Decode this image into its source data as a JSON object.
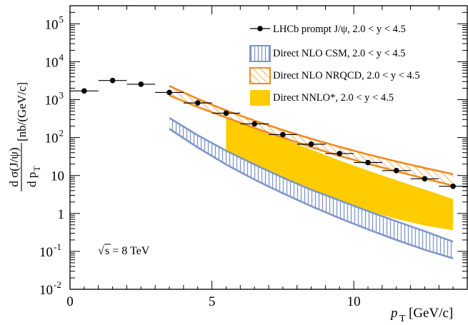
{
  "chart_data": {
    "type": "scatter",
    "title": "",
    "xlabel": {
      "main": "p",
      "sub": "T",
      "unit": "[GeV/c]"
    },
    "ylabel": {
      "numerator": "d σ(J/ψ)",
      "denominator_main": "d p",
      "denominator_sub": "T",
      "unit": "[nb/(GeV/c]"
    },
    "xlim": [
      0,
      14
    ],
    "ylim": [
      0.01,
      300000
    ],
    "yscale": "log",
    "x_ticks": [
      {
        "value": 0,
        "label": "0"
      },
      {
        "value": 5,
        "label": "5"
      },
      {
        "value": 10,
        "label": "10"
      }
    ],
    "y_ticks": [
      {
        "value": 0.01,
        "base": "10",
        "exp": "-2"
      },
      {
        "value": 0.1,
        "base": "10",
        "exp": "-1"
      },
      {
        "value": 1,
        "base": "1",
        "exp": ""
      },
      {
        "value": 10,
        "base": "10",
        "exp": ""
      },
      {
        "value": 100,
        "base": "10",
        "exp": "2"
      },
      {
        "value": 1000,
        "base": "10",
        "exp": "3"
      },
      {
        "value": 10000,
        "base": "10",
        "exp": "4"
      },
      {
        "value": 100000,
        "base": "10",
        "exp": "5"
      }
    ],
    "annotation": {
      "sqrt_symbol": "√",
      "label": "s = 8 TeV"
    },
    "legend_position": "top-right",
    "series": [
      {
        "name": "LHCb prompt J/ψ, 2.0 < y < 4.5",
        "kind": "points",
        "color": "#000000",
        "points": [
          {
            "x": 0.5,
            "xlo": 0,
            "xhi": 1,
            "y": 1700
          },
          {
            "x": 1.5,
            "xlo": 1,
            "xhi": 2,
            "y": 3200
          },
          {
            "x": 2.5,
            "xlo": 2,
            "xhi": 3,
            "y": 2550
          },
          {
            "x": 3.5,
            "xlo": 3,
            "xhi": 4,
            "y": 1550
          },
          {
            "x": 4.5,
            "xlo": 4,
            "xhi": 5,
            "y": 820
          },
          {
            "x": 5.5,
            "xlo": 5,
            "xhi": 6,
            "y": 440
          },
          {
            "x": 6.5,
            "xlo": 6,
            "xhi": 7,
            "y": 230
          },
          {
            "x": 7.5,
            "xlo": 7,
            "xhi": 8,
            "y": 120
          },
          {
            "x": 8.5,
            "xlo": 8,
            "xhi": 9,
            "y": 67
          },
          {
            "x": 9.5,
            "xlo": 9,
            "xhi": 10,
            "y": 38
          },
          {
            "x": 10.5,
            "xlo": 10,
            "xhi": 11,
            "y": 22
          },
          {
            "x": 11.5,
            "xlo": 11,
            "xhi": 12,
            "y": 13.5
          },
          {
            "x": 12.5,
            "xlo": 12,
            "xhi": 13,
            "y": 8.2
          },
          {
            "x": 13.5,
            "xlo": 13,
            "xhi": 14,
            "y": 5.2
          }
        ]
      },
      {
        "name": "Direct NLO CSM, 2.0 < y < 4.5",
        "kind": "band",
        "style": "vertical-hatch",
        "color": "#7f96c9",
        "x": [
          3.5,
          4.5,
          5.5,
          6.5,
          7.5,
          8.5,
          9.5,
          10.5,
          11.5,
          12.5,
          13.5
        ],
        "upper": [
          330,
          115,
          45,
          19.5,
          8.8,
          4.2,
          2.2,
          1.15,
          0.62,
          0.34,
          0.18
        ],
        "lower": [
          170,
          55,
          19.5,
          7.8,
          3.4,
          1.55,
          0.75,
          0.38,
          0.2,
          0.11,
          0.065
        ]
      },
      {
        "name": "Direct NLO NRQCD, 2.0 < y < 4.5",
        "kind": "band",
        "style": "diagonal-hatch",
        "color": "#ef8b1c",
        "x": [
          3.5,
          4.5,
          5.5,
          6.5,
          7.5,
          8.5,
          9.5,
          10.5,
          11.5,
          12.5,
          13.5
        ],
        "upper": [
          2300,
          1050,
          520,
          280,
          158,
          93,
          57,
          36,
          23.5,
          15.8,
          10.8
        ],
        "lower": [
          1300,
          640,
          340,
          180,
          100,
          56,
          33,
          20.5,
          13,
          8.3,
          5.4
        ]
      },
      {
        "name": "Direct NNLO*, 2.0 < y < 4.5",
        "kind": "band",
        "style": "solid",
        "color": "#ffcc00",
        "x": [
          5.5,
          6.5,
          7.5,
          8.5,
          9.5,
          10.5,
          11.5,
          12.5,
          13.5
        ],
        "upper": [
          400,
          200,
          95,
          48,
          25,
          13.5,
          7.5,
          4.3,
          2.4
        ],
        "lower": [
          45,
          17,
          7.5,
          3.6,
          1.9,
          1.15,
          0.72,
          0.48,
          0.36
        ]
      }
    ]
  },
  "colors": {
    "points": "#000000",
    "csm": "#7f96c9",
    "nrqcd": "#ef8b1c",
    "nnlo": "#ffcc00"
  }
}
